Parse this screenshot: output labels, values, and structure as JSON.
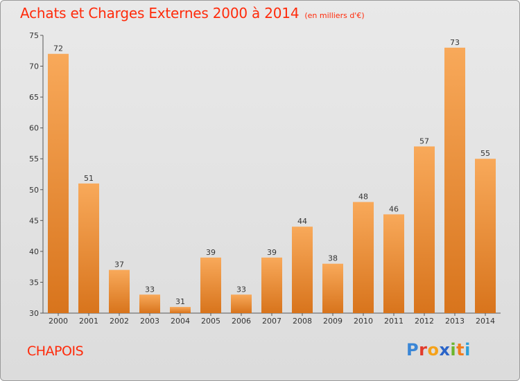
{
  "title": "Achats et Charges Externes 2000 à 2014",
  "unit": "(en milliers d'€)",
  "commune": "CHAPOIS",
  "brand": {
    "letters": [
      "P",
      "r",
      "o",
      "x",
      "i",
      "t",
      "i"
    ],
    "colors": [
      "#3a86d6",
      "#e23b2b",
      "#f5a21a",
      "#2a64c8",
      "#6cb52d",
      "#f27d1c",
      "#2c9fd8"
    ]
  },
  "colors": {
    "bar_top": "#f8a95a",
    "bar_bottom": "#d8741c",
    "title": "#ff2a0a"
  },
  "chart_data": {
    "type": "bar",
    "categories": [
      "2000",
      "2001",
      "2002",
      "2003",
      "2004",
      "2005",
      "2006",
      "2007",
      "2008",
      "2009",
      "2010",
      "2011",
      "2012",
      "2013",
      "2014"
    ],
    "values": [
      72,
      51,
      37,
      33,
      31,
      39,
      33,
      39,
      44,
      38,
      48,
      46,
      57,
      73,
      55
    ],
    "ylim": [
      30,
      75
    ],
    "yticks": [
      30,
      35,
      40,
      45,
      50,
      55,
      60,
      65,
      70,
      75
    ],
    "grid": false
  }
}
